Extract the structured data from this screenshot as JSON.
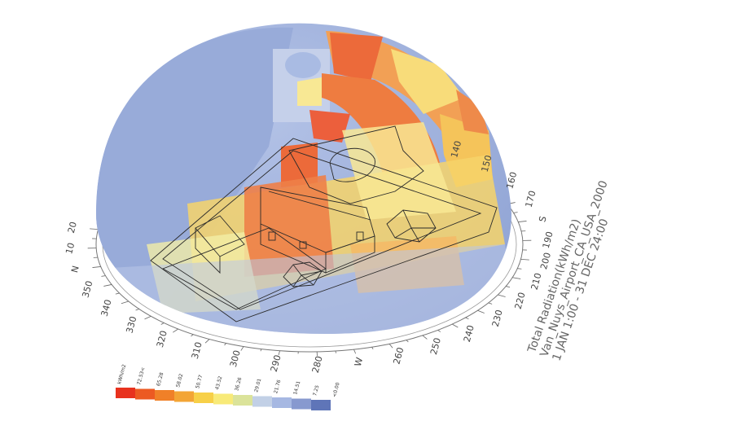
{
  "title": {
    "line1": "Total Radiation(kWh/m2)",
    "line2": "Van_Nuys_Airport_CA_USA_2000",
    "line3": "1 JAN 1:00 - 31 DEC 24:00"
  },
  "legend": {
    "unit": "kWh/m2",
    "values": [
      "72.53<",
      "65.28",
      "58.02",
      "50.77",
      "43.52",
      "36.26",
      "29.01",
      "21.76",
      "14.51",
      "7.25",
      "<0.00"
    ],
    "colors": [
      "#e8321e",
      "#ec5a22",
      "#f08028",
      "#f3a535",
      "#f7d048",
      "#f8ea78",
      "#dbe39a",
      "#c2d0e6",
      "#a6b8e2",
      "#8799cf",
      "#5f75b8"
    ]
  },
  "compass": {
    "cardinals": [
      {
        "label": "N",
        "deg": 0
      },
      {
        "label": "S",
        "deg": 180
      },
      {
        "label": "W",
        "deg": 270
      }
    ],
    "degrees": [
      {
        "label": "10",
        "deg": 10
      },
      {
        "label": "20",
        "deg": 20
      },
      {
        "label": "140",
        "deg": 140
      },
      {
        "label": "150",
        "deg": 150
      },
      {
        "label": "160",
        "deg": 160
      },
      {
        "label": "170",
        "deg": 170
      },
      {
        "label": "190",
        "deg": 190
      },
      {
        "label": "200",
        "deg": 200
      },
      {
        "label": "210",
        "deg": 210
      },
      {
        "label": "220",
        "deg": 220
      },
      {
        "label": "230",
        "deg": 230
      },
      {
        "label": "240",
        "deg": 240
      },
      {
        "label": "250",
        "deg": 250
      },
      {
        "label": "260",
        "deg": 260
      },
      {
        "label": "280",
        "deg": 280
      },
      {
        "label": "290",
        "deg": 290
      },
      {
        "label": "300",
        "deg": 300
      },
      {
        "label": "310",
        "deg": 310
      },
      {
        "label": "320",
        "deg": 320
      },
      {
        "label": "330",
        "deg": 330
      },
      {
        "label": "340",
        "deg": 340
      },
      {
        "label": "350",
        "deg": 350
      }
    ]
  },
  "colors": {
    "dome_base": "#9fb1dc",
    "hot": "#ec6a3a",
    "warm": "#f5c45a",
    "pale": "#f8e894",
    "outline": "#2a2a2a"
  }
}
